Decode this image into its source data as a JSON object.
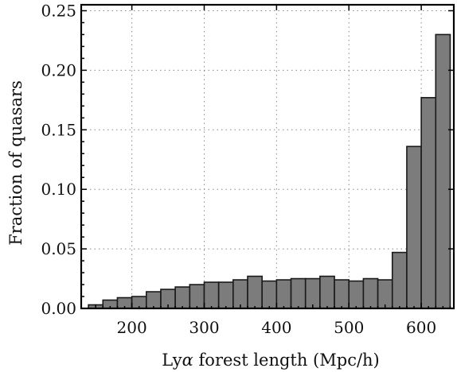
{
  "chart_data": {
    "type": "bar",
    "xlabel_prefix": "Ly",
    "xlabel_symbol": "α",
    "xlabel_suffix": " forest length (Mpc/h)",
    "ylabel": "Fraction of quasars",
    "xlim": [
      130,
      645
    ],
    "ylim": [
      0,
      0.255
    ],
    "xticks": [
      200,
      300,
      400,
      500,
      600
    ],
    "yticks": [
      0.0,
      0.05,
      0.1,
      0.15,
      0.2,
      0.25
    ],
    "ytick_labels": [
      "0.00",
      "0.05",
      "0.10",
      "0.15",
      "0.20",
      "0.25"
    ],
    "grid": true,
    "bin_edges": [
      140,
      160,
      180,
      200,
      220,
      240,
      260,
      280,
      300,
      320,
      340,
      360,
      380,
      400,
      420,
      440,
      460,
      480,
      500,
      520,
      540,
      560,
      580,
      600,
      620,
      640
    ],
    "values": [
      0.003,
      0.007,
      0.009,
      0.01,
      0.014,
      0.016,
      0.018,
      0.02,
      0.022,
      0.022,
      0.024,
      0.027,
      0.023,
      0.024,
      0.025,
      0.025,
      0.027,
      0.024,
      0.023,
      0.025,
      0.024,
      0.047,
      0.136,
      0.177,
      0.23
    ],
    "colors": {
      "bar_fill": "#7c7c7c",
      "bar_edge": "#1a1a1a"
    }
  }
}
